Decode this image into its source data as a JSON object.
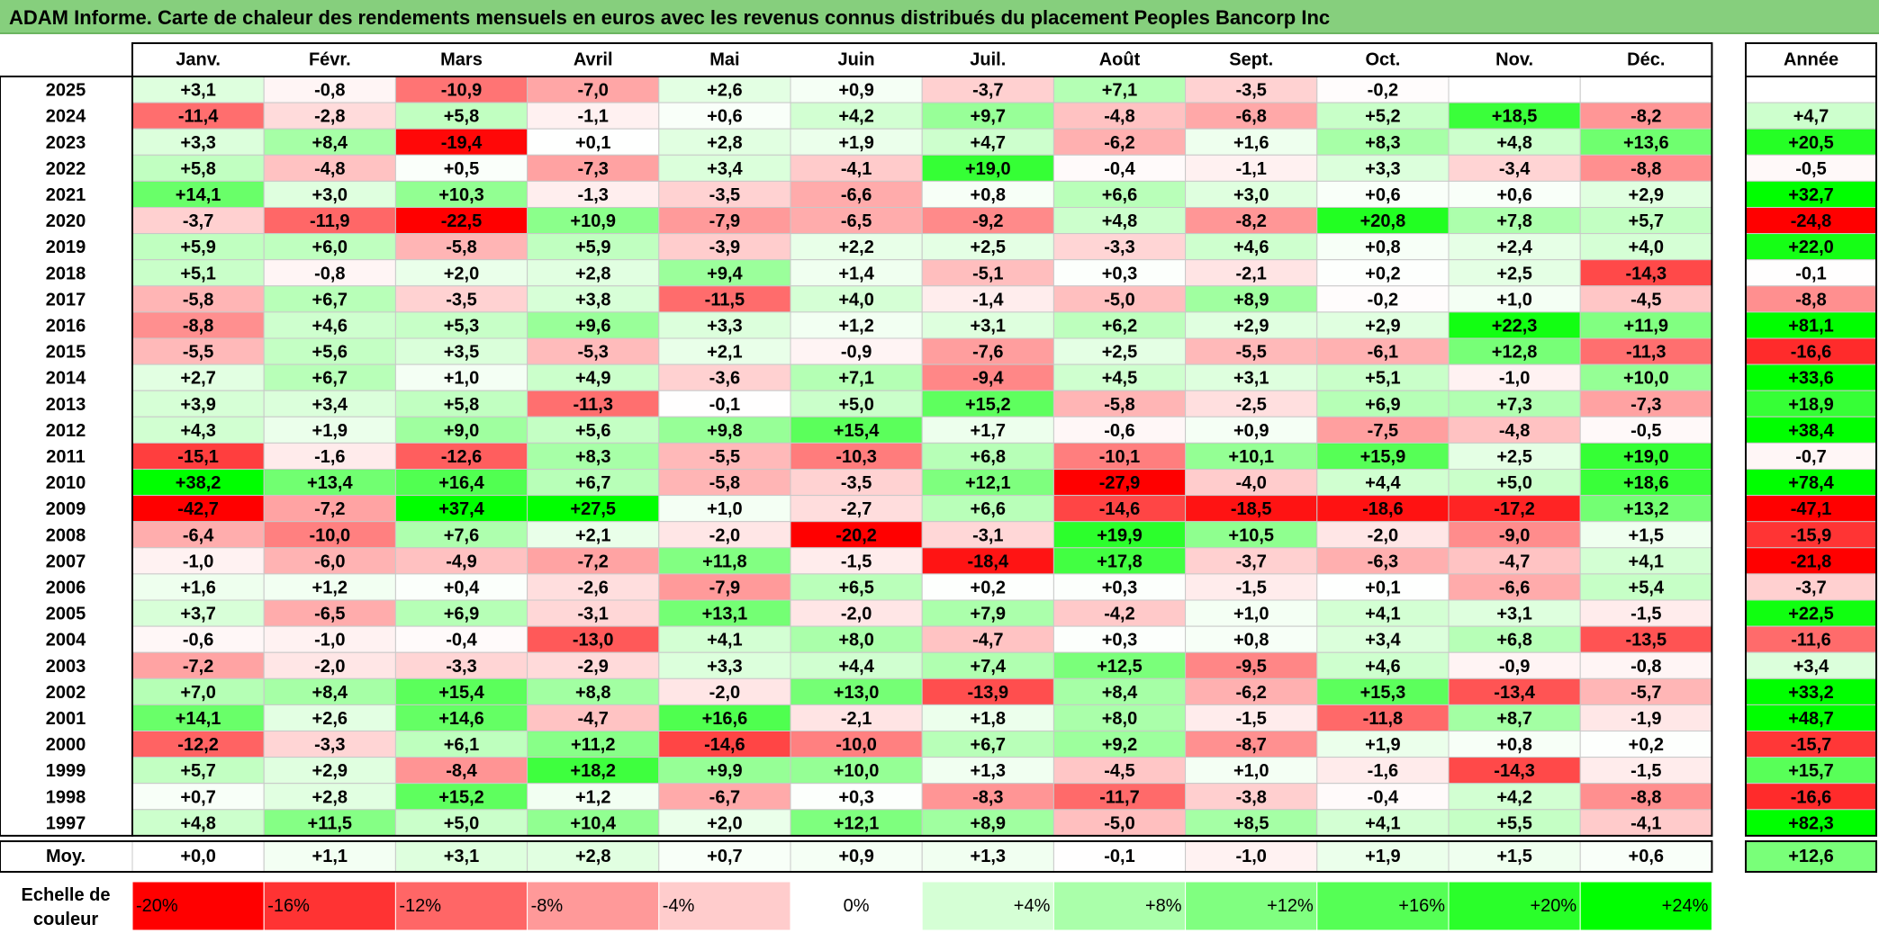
{
  "title": "ADAM Informe. Carte de chaleur des rendements mensuels en euros avec les revenus connus distribués du placement Peoples Bancorp Inc",
  "chart_data": {
    "type": "heatmap",
    "months": [
      "Janv.",
      "Févr.",
      "Mars",
      "Avril",
      "Mai",
      "Juin",
      "Juil.",
      "Août",
      "Sept.",
      "Oct.",
      "Nov.",
      "Déc."
    ],
    "year_header": "Année",
    "rows": [
      {
        "year": "2025",
        "values": [
          "+3,1",
          "-0,8",
          "-10,9",
          "-7,0",
          "+2,6",
          "+0,9",
          "-3,7",
          "+7,1",
          "-3,5",
          "-0,2",
          "",
          ""
        ],
        "annual": ""
      },
      {
        "year": "2024",
        "values": [
          "-11,4",
          "-2,8",
          "+5,8",
          "-1,1",
          "+0,6",
          "+4,2",
          "+9,7",
          "-4,8",
          "-6,8",
          "+5,2",
          "+18,5",
          "-8,2"
        ],
        "annual": "+4,7"
      },
      {
        "year": "2023",
        "values": [
          "+3,3",
          "+8,4",
          "-19,4",
          "+0,1",
          "+2,8",
          "+1,9",
          "+4,7",
          "-6,2",
          "+1,6",
          "+8,3",
          "+4,8",
          "+13,6"
        ],
        "annual": "+20,5"
      },
      {
        "year": "2022",
        "values": [
          "+5,8",
          "-4,8",
          "+0,5",
          "-7,3",
          "+3,4",
          "-4,1",
          "+19,0",
          "-0,4",
          "-1,1",
          "+3,3",
          "-3,4",
          "-8,8"
        ],
        "annual": "-0,5"
      },
      {
        "year": "2021",
        "values": [
          "+14,1",
          "+3,0",
          "+10,3",
          "-1,3",
          "-3,5",
          "-6,6",
          "+0,8",
          "+6,6",
          "+3,0",
          "+0,6",
          "+0,6",
          "+2,9"
        ],
        "annual": "+32,7"
      },
      {
        "year": "2020",
        "values": [
          "-3,7",
          "-11,9",
          "-22,5",
          "+10,9",
          "-7,9",
          "-6,5",
          "-9,2",
          "+4,8",
          "-8,2",
          "+20,8",
          "+7,8",
          "+5,7"
        ],
        "annual": "-24,8"
      },
      {
        "year": "2019",
        "values": [
          "+5,9",
          "+6,0",
          "-5,8",
          "+5,9",
          "-3,9",
          "+2,2",
          "+2,5",
          "-3,3",
          "+4,6",
          "+0,8",
          "+2,4",
          "+4,0"
        ],
        "annual": "+22,0"
      },
      {
        "year": "2018",
        "values": [
          "+5,1",
          "-0,8",
          "+2,0",
          "+2,8",
          "+9,4",
          "+1,4",
          "-5,1",
          "+0,3",
          "-2,1",
          "+0,2",
          "+2,5",
          "-14,3"
        ],
        "annual": "-0,1"
      },
      {
        "year": "2017",
        "values": [
          "-5,8",
          "+6,7",
          "-3,5",
          "+3,8",
          "-11,5",
          "+4,0",
          "-1,4",
          "-5,0",
          "+8,9",
          "-0,2",
          "+1,0",
          "-4,5"
        ],
        "annual": "-8,8"
      },
      {
        "year": "2016",
        "values": [
          "-8,8",
          "+4,6",
          "+5,3",
          "+9,6",
          "+3,3",
          "+1,2",
          "+3,1",
          "+6,2",
          "+2,9",
          "+2,9",
          "+22,3",
          "+11,9"
        ],
        "annual": "+81,1"
      },
      {
        "year": "2015",
        "values": [
          "-5,5",
          "+5,6",
          "+3,5",
          "-5,3",
          "+2,1",
          "-0,9",
          "-7,6",
          "+2,5",
          "-5,5",
          "-6,1",
          "+12,8",
          "-11,3"
        ],
        "annual": "-16,6"
      },
      {
        "year": "2014",
        "values": [
          "+2,7",
          "+6,7",
          "+1,0",
          "+4,9",
          "-3,6",
          "+7,1",
          "-9,4",
          "+4,5",
          "+3,1",
          "+5,1",
          "-1,0",
          "+10,0"
        ],
        "annual": "+33,6"
      },
      {
        "year": "2013",
        "values": [
          "+3,9",
          "+3,4",
          "+5,8",
          "-11,3",
          "-0,1",
          "+5,0",
          "+15,2",
          "-5,8",
          "-2,5",
          "+6,9",
          "+7,3",
          "-7,3"
        ],
        "annual": "+18,9"
      },
      {
        "year": "2012",
        "values": [
          "+4,3",
          "+1,9",
          "+9,0",
          "+5,6",
          "+9,8",
          "+15,4",
          "+1,7",
          "-0,6",
          "+0,9",
          "-7,5",
          "-4,8",
          "-0,5"
        ],
        "annual": "+38,4"
      },
      {
        "year": "2011",
        "values": [
          "-15,1",
          "-1,6",
          "-12,6",
          "+8,3",
          "-5,5",
          "-10,3",
          "+6,8",
          "-10,1",
          "+10,1",
          "+15,9",
          "+2,5",
          "+19,0"
        ],
        "annual": "-0,7"
      },
      {
        "year": "2010",
        "values": [
          "+38,2",
          "+13,4",
          "+16,4",
          "+6,7",
          "-5,8",
          "-3,5",
          "+12,1",
          "-27,9",
          "-4,0",
          "+4,4",
          "+5,0",
          "+18,6"
        ],
        "annual": "+78,4"
      },
      {
        "year": "2009",
        "values": [
          "-42,7",
          "-7,2",
          "+37,4",
          "+27,5",
          "+1,0",
          "-2,7",
          "+6,6",
          "-14,6",
          "-18,5",
          "-18,6",
          "-17,2",
          "+13,2"
        ],
        "annual": "-47,1"
      },
      {
        "year": "2008",
        "values": [
          "-6,4",
          "-10,0",
          "+7,6",
          "+2,1",
          "-2,0",
          "-20,2",
          "-3,1",
          "+19,9",
          "+10,5",
          "-2,0",
          "-9,0",
          "+1,5"
        ],
        "annual": "-15,9"
      },
      {
        "year": "2007",
        "values": [
          "-1,0",
          "-6,0",
          "-4,9",
          "-7,2",
          "+11,8",
          "-1,5",
          "-18,4",
          "+17,8",
          "-3,7",
          "-6,3",
          "-4,7",
          "+4,1"
        ],
        "annual": "-21,8"
      },
      {
        "year": "2006",
        "values": [
          "+1,6",
          "+1,2",
          "+0,4",
          "-2,6",
          "-7,9",
          "+6,5",
          "+0,2",
          "+0,3",
          "-1,5",
          "+0,1",
          "-6,6",
          "+5,4"
        ],
        "annual": "-3,7"
      },
      {
        "year": "2005",
        "values": [
          "+3,7",
          "-6,5",
          "+6,9",
          "-3,1",
          "+13,1",
          "-2,0",
          "+7,9",
          "-4,2",
          "+1,0",
          "+4,1",
          "+3,1",
          "-1,5"
        ],
        "annual": "+22,5"
      },
      {
        "year": "2004",
        "values": [
          "-0,6",
          "-1,0",
          "-0,4",
          "-13,0",
          "+4,1",
          "+8,0",
          "-4,7",
          "+0,3",
          "+0,8",
          "+3,4",
          "+6,8",
          "-13,5"
        ],
        "annual": "-11,6"
      },
      {
        "year": "2003",
        "values": [
          "-7,2",
          "-2,0",
          "-3,3",
          "-2,9",
          "+3,3",
          "+4,4",
          "+7,4",
          "+12,5",
          "-9,5",
          "+4,6",
          "-0,9",
          "-0,8"
        ],
        "annual": "+3,4"
      },
      {
        "year": "2002",
        "values": [
          "+7,0",
          "+8,4",
          "+15,4",
          "+8,8",
          "-2,0",
          "+13,0",
          "-13,9",
          "+8,4",
          "-6,2",
          "+15,3",
          "-13,4",
          "-5,7"
        ],
        "annual": "+33,2"
      },
      {
        "year": "2001",
        "values": [
          "+14,1",
          "+2,6",
          "+14,6",
          "-4,7",
          "+16,6",
          "-2,1",
          "+1,8",
          "+8,0",
          "-1,5",
          "-11,8",
          "+8,7",
          "-1,9"
        ],
        "annual": "+48,7"
      },
      {
        "year": "2000",
        "values": [
          "-12,2",
          "-3,3",
          "+6,1",
          "+11,2",
          "-14,6",
          "-10,0",
          "+6,7",
          "+9,2",
          "-8,7",
          "+1,9",
          "+0,8",
          "+0,2"
        ],
        "annual": "-15,7"
      },
      {
        "year": "1999",
        "values": [
          "+5,7",
          "+2,9",
          "-8,4",
          "+18,2",
          "+9,9",
          "+10,0",
          "+1,3",
          "-4,5",
          "+1,0",
          "-1,6",
          "-14,3",
          "-1,5"
        ],
        "annual": "+15,7"
      },
      {
        "year": "1998",
        "values": [
          "+0,7",
          "+2,8",
          "+15,2",
          "+1,2",
          "-6,7",
          "+0,3",
          "-8,3",
          "-11,7",
          "-3,8",
          "-0,4",
          "+4,2",
          "-8,8"
        ],
        "annual": "-16,6"
      },
      {
        "year": "1997",
        "values": [
          "+4,8",
          "+11,5",
          "+5,0",
          "+10,4",
          "+2,0",
          "+12,1",
          "+8,9",
          "-5,0",
          "+8,5",
          "+4,1",
          "+5,5",
          "-4,1"
        ],
        "annual": "+82,3"
      }
    ],
    "average": {
      "label": "Moy.",
      "values": [
        "+0,0",
        "+1,1",
        "+3,1",
        "+2,8",
        "+0,7",
        "+0,9",
        "+1,3",
        "-0,1",
        "-1,0",
        "+1,9",
        "+1,5",
        "+0,6"
      ],
      "annual": "+12,6"
    },
    "scale": {
      "label_line1": "Echelle de",
      "label_line2": "couleur",
      "steps": [
        "-20%",
        "-16%",
        "-12%",
        "-8%",
        "-4%",
        "0%",
        "+4%",
        "+8%",
        "+12%",
        "+16%",
        "+20%",
        "+24%"
      ]
    },
    "colors": {
      "negative": "#ff0000",
      "positive": "#00ff00",
      "neutral": "#ffffff",
      "title_bg": "#86cf7d"
    }
  }
}
